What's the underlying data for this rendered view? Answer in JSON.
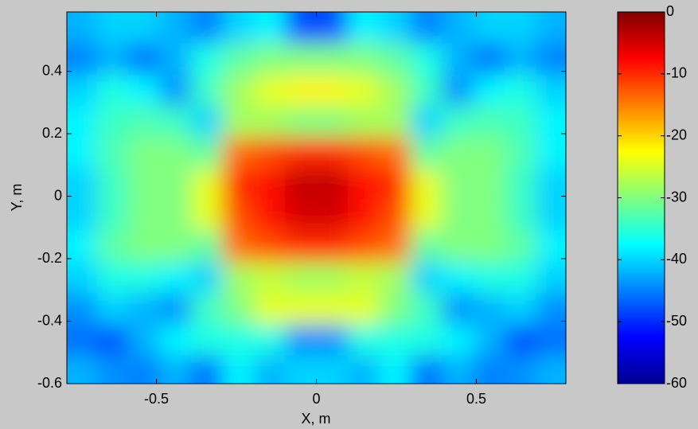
{
  "chart_data": {
    "type": "heatmap",
    "xlabel": "X, m",
    "ylabel": "Y, m",
    "x": [
      -0.735,
      -0.637,
      -0.539,
      -0.441,
      -0.343,
      -0.245,
      -0.147,
      -0.049,
      0.049,
      0.147,
      0.245,
      0.343,
      0.441,
      0.539,
      0.637,
      0.735
    ],
    "y": [
      0.54,
      0.44,
      0.34,
      0.24,
      0.14,
      0.04,
      -0.06,
      -0.16,
      -0.26,
      -0.36,
      -0.46,
      -0.56
    ],
    "z": [
      [
        -42,
        -40,
        -40,
        -42,
        -45,
        -40,
        -38,
        -48,
        -48,
        -38,
        -40,
        -45,
        -42,
        -40,
        -40,
        -42
      ],
      [
        -45,
        -42,
        -46,
        -42,
        -36,
        -32,
        -30,
        -30,
        -30,
        -30,
        -32,
        -36,
        -42,
        -46,
        -42,
        -45
      ],
      [
        -40,
        -36,
        -38,
        -44,
        -34,
        -28,
        -24,
        -22,
        -22,
        -24,
        -28,
        -34,
        -44,
        -38,
        -36,
        -40
      ],
      [
        -38,
        -34,
        -33,
        -34,
        -40,
        -28,
        -28,
        -30,
        -30,
        -28,
        -28,
        -40,
        -34,
        -33,
        -34,
        -38
      ],
      [
        -38,
        -33,
        -30,
        -30,
        -32,
        -14,
        -12,
        -10,
        -10,
        -12,
        -14,
        -32,
        -30,
        -30,
        -33,
        -38
      ],
      [
        -40,
        -34,
        -30,
        -30,
        -24,
        -10,
        -8,
        -4,
        -4,
        -8,
        -10,
        -24,
        -30,
        -30,
        -34,
        -40
      ],
      [
        -40,
        -34,
        -30,
        -30,
        -24,
        -12,
        -8,
        -5,
        -5,
        -8,
        -12,
        -24,
        -30,
        -30,
        -34,
        -40
      ],
      [
        -38,
        -32,
        -30,
        -30,
        -32,
        -14,
        -12,
        -10,
        -10,
        -12,
        -14,
        -32,
        -30,
        -30,
        -32,
        -38
      ],
      [
        -40,
        -36,
        -36,
        -38,
        -40,
        -28,
        -26,
        -28,
        -28,
        -26,
        -28,
        -40,
        -38,
        -36,
        -36,
        -40
      ],
      [
        -44,
        -40,
        -42,
        -44,
        -34,
        -30,
        -24,
        -24,
        -24,
        -24,
        -30,
        -34,
        -44,
        -42,
        -40,
        -44
      ],
      [
        -46,
        -48,
        -42,
        -38,
        -36,
        -36,
        -36,
        -44,
        -44,
        -36,
        -36,
        -36,
        -38,
        -42,
        -48,
        -46
      ],
      [
        -42,
        -44,
        -45,
        -42,
        -46,
        -38,
        -42,
        -40,
        -40,
        -42,
        -38,
        -46,
        -42,
        -45,
        -44,
        -42
      ]
    ],
    "xlim": [
      -0.78,
      0.78
    ],
    "ylim": [
      -0.6,
      0.59
    ],
    "xticks": [
      -0.5,
      0,
      0.5
    ],
    "yticks": [
      -0.6,
      -0.4,
      -0.2,
      0,
      0.2,
      0.4
    ],
    "clim": [
      -60,
      0
    ],
    "cticks": [
      0,
      -10,
      -20,
      -30,
      -40,
      -50,
      -60
    ],
    "colormap": "jet"
  }
}
